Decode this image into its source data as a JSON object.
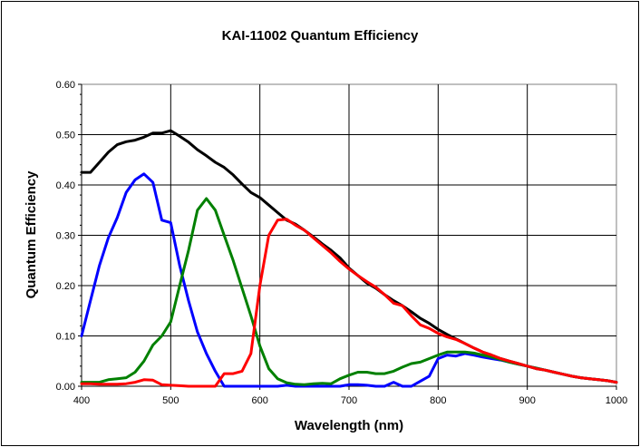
{
  "chart_data": {
    "type": "line",
    "title": "KAI-11002 Quantum Efficiency",
    "xlabel": "Wavelength (nm)",
    "ylabel": "Quantum Efficiency",
    "xlim": [
      400,
      1000
    ],
    "ylim": [
      0,
      0.6
    ],
    "xticks": [
      "400",
      "500",
      "600",
      "700",
      "800",
      "900",
      "1000"
    ],
    "yticks": [
      "0.00",
      "0.10",
      "0.20",
      "0.30",
      "0.40",
      "0.50",
      "0.60"
    ],
    "xtick_values": [
      400,
      500,
      600,
      700,
      800,
      900,
      1000
    ],
    "ytick_values": [
      0,
      0.1,
      0.2,
      0.3,
      0.4,
      0.5,
      0.6
    ],
    "grid": true,
    "series": [
      {
        "color": "#000000",
        "x": [
          400,
          410,
          420,
          430,
          440,
          450,
          460,
          470,
          480,
          490,
          500,
          510,
          520,
          530,
          540,
          550,
          560,
          570,
          580,
          590,
          600,
          610,
          620,
          630,
          640,
          650,
          660,
          670,
          680,
          690,
          700,
          710,
          720,
          730,
          740,
          750,
          760,
          770,
          780,
          790,
          800,
          810,
          820,
          830,
          840,
          850,
          860,
          870,
          880,
          890,
          900,
          910,
          920,
          930,
          940,
          950,
          960,
          970,
          980,
          990,
          1000
        ],
        "y": [
          0.425,
          0.425,
          0.445,
          0.465,
          0.48,
          0.486,
          0.489,
          0.495,
          0.503,
          0.503,
          0.508,
          0.497,
          0.485,
          0.47,
          0.458,
          0.445,
          0.435,
          0.42,
          0.402,
          0.385,
          0.375,
          0.36,
          0.345,
          0.33,
          0.322,
          0.31,
          0.297,
          0.283,
          0.27,
          0.255,
          0.235,
          0.22,
          0.205,
          0.195,
          0.182,
          0.17,
          0.16,
          0.148,
          0.135,
          0.125,
          0.113,
          0.103,
          0.094,
          0.085,
          0.076,
          0.068,
          0.062,
          0.055,
          0.05,
          0.045,
          0.04,
          0.035,
          0.032,
          0.028,
          0.024,
          0.02,
          0.017,
          0.015,
          0.013,
          0.011,
          0.008
        ]
      },
      {
        "color": "#0000ff",
        "x": [
          400,
          410,
          420,
          430,
          440,
          450,
          460,
          470,
          480,
          490,
          500,
          510,
          520,
          530,
          540,
          550,
          560,
          570,
          580,
          590,
          600,
          610,
          620,
          630,
          640,
          650,
          660,
          670,
          680,
          690,
          700,
          710,
          720,
          730,
          740,
          750,
          760,
          770,
          780,
          790,
          800,
          810,
          820,
          830,
          840,
          850,
          860,
          870,
          880,
          890,
          900,
          910,
          920,
          930,
          940,
          950,
          960,
          970,
          980,
          990,
          1000
        ],
        "y": [
          0.1,
          0.17,
          0.24,
          0.295,
          0.335,
          0.385,
          0.41,
          0.422,
          0.405,
          0.33,
          0.325,
          0.24,
          0.17,
          0.108,
          0.065,
          0.03,
          0.0,
          0.0,
          0.0,
          0.0,
          0.0,
          0.0,
          0.0,
          0.002,
          0.0,
          0.0,
          0.0,
          0.0,
          0.0,
          0.0,
          0.003,
          0.003,
          0.002,
          0.0,
          0.0,
          0.008,
          0.0,
          0.0,
          0.01,
          0.02,
          0.055,
          0.062,
          0.06,
          0.065,
          0.062,
          0.058,
          0.055,
          0.052,
          0.048,
          0.044,
          0.04,
          0.036,
          0.032,
          0.028,
          0.024,
          0.02,
          0.017,
          0.015,
          0.013,
          0.011,
          0.008
        ]
      },
      {
        "color": "#008000",
        "x": [
          400,
          410,
          420,
          430,
          440,
          450,
          460,
          470,
          480,
          490,
          500,
          510,
          520,
          530,
          540,
          550,
          560,
          570,
          580,
          590,
          600,
          610,
          620,
          630,
          640,
          650,
          660,
          670,
          680,
          690,
          700,
          710,
          720,
          730,
          740,
          750,
          760,
          770,
          780,
          790,
          800,
          810,
          820,
          830,
          840,
          850,
          860,
          870,
          880,
          890,
          900,
          910,
          920,
          930,
          940,
          950,
          960,
          970,
          980,
          990,
          1000
        ],
        "y": [
          0.008,
          0.008,
          0.008,
          0.013,
          0.015,
          0.017,
          0.028,
          0.05,
          0.082,
          0.1,
          0.128,
          0.2,
          0.27,
          0.35,
          0.373,
          0.35,
          0.3,
          0.25,
          0.195,
          0.14,
          0.08,
          0.035,
          0.015,
          0.007,
          0.004,
          0.003,
          0.005,
          0.006,
          0.005,
          0.015,
          0.022,
          0.028,
          0.028,
          0.025,
          0.025,
          0.03,
          0.038,
          0.045,
          0.048,
          0.055,
          0.062,
          0.068,
          0.068,
          0.068,
          0.066,
          0.062,
          0.058,
          0.053,
          0.048,
          0.044,
          0.04,
          0.036,
          0.032,
          0.028,
          0.024,
          0.02,
          0.017,
          0.015,
          0.013,
          0.011,
          0.008
        ]
      },
      {
        "color": "#ff0000",
        "x": [
          400,
          410,
          420,
          430,
          440,
          450,
          460,
          470,
          480,
          490,
          500,
          510,
          520,
          530,
          540,
          550,
          560,
          570,
          580,
          590,
          600,
          610,
          620,
          630,
          640,
          650,
          660,
          670,
          680,
          690,
          700,
          710,
          720,
          730,
          740,
          750,
          760,
          770,
          780,
          790,
          800,
          810,
          820,
          830,
          840,
          850,
          860,
          870,
          880,
          890,
          900,
          910,
          920,
          930,
          940,
          950,
          960,
          970,
          980,
          990,
          1000
        ],
        "y": [
          0.005,
          0.005,
          0.004,
          0.004,
          0.004,
          0.005,
          0.008,
          0.013,
          0.012,
          0.003,
          0.002,
          0.001,
          0.0,
          0.0,
          0.0,
          0.0,
          0.025,
          0.025,
          0.03,
          0.065,
          0.2,
          0.3,
          0.33,
          0.332,
          0.32,
          0.31,
          0.295,
          0.28,
          0.265,
          0.248,
          0.233,
          0.22,
          0.208,
          0.197,
          0.182,
          0.165,
          0.16,
          0.14,
          0.122,
          0.115,
          0.105,
          0.098,
          0.093,
          0.085,
          0.076,
          0.068,
          0.062,
          0.055,
          0.05,
          0.045,
          0.04,
          0.035,
          0.032,
          0.028,
          0.024,
          0.02,
          0.017,
          0.015,
          0.013,
          0.011,
          0.008
        ]
      }
    ]
  }
}
